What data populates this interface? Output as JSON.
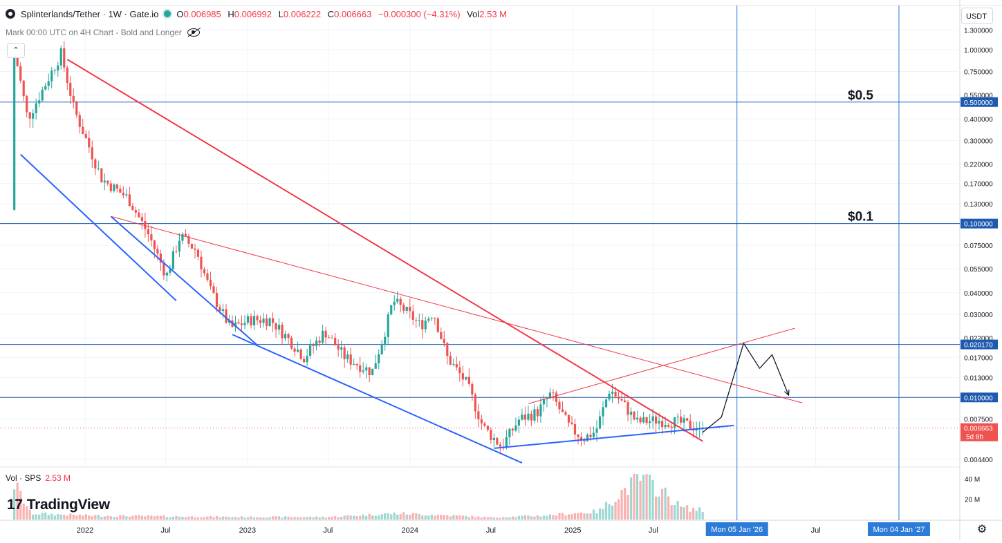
{
  "header": {
    "title": "Splinterlands/Tether · 1W · Gate.io",
    "open_label": "O",
    "open": "0.006985",
    "high_label": "H",
    "high": "0.006992",
    "low_label": "L",
    "low": "0.006222",
    "close_label": "C",
    "close": "0.006663",
    "change": "−0.000300 (−4.31%)",
    "vol_label": "Vol",
    "vol": "2.53 M",
    "subtitle": "Mark 00:00 UTC on 4H Chart - Bold and Longer",
    "collapse_glyph": "⌃"
  },
  "currency": "USDT",
  "volume_header": {
    "label": "Vol · SPS",
    "value": "2.53 M"
  },
  "logo": {
    "text": "TradingView",
    "mark": "17"
  },
  "settings_icon": "⚙",
  "colors": {
    "up": "#26a69a",
    "down": "#ef5350",
    "blue": "#2962ff",
    "red": "#f23645",
    "hline": "#1e5bb0",
    "vline": "#2d7bd8"
  },
  "chart_data": {
    "type": "candlestick",
    "scale": "log",
    "price_axis_labels": [
      "1.300000",
      "1.000000",
      "0.750000",
      "0.550000",
      "0.400000",
      "0.300000",
      "0.220000",
      "0.170000",
      "0.130000",
      "0.075000",
      "0.055000",
      "0.040000",
      "0.030000",
      "0.022000",
      "0.017000",
      "0.013000",
      "0.007500",
      "0.004400"
    ],
    "price_axis_values": [
      1.3,
      1.0,
      0.75,
      0.55,
      0.4,
      0.3,
      0.22,
      0.17,
      0.13,
      0.075,
      0.055,
      0.04,
      0.03,
      0.022,
      0.017,
      0.013,
      0.0075,
      0.0044
    ],
    "highlight_levels": [
      {
        "label": "0.500000",
        "price": 0.5,
        "annotation": "$0.5"
      },
      {
        "label": "0.100000",
        "price": 0.1,
        "annotation": "$0.1"
      },
      {
        "label": "0.020170",
        "price": 0.02017,
        "annotation": ""
      },
      {
        "label": "0.010000",
        "price": 0.01,
        "annotation": ""
      }
    ],
    "last_price": {
      "label": "0.006663",
      "countdown": "5d 8h",
      "price": 0.006663
    },
    "time_axis": [
      {
        "label": "2022",
        "date": "2022-01-01"
      },
      {
        "label": "Jul",
        "date": "2022-07-01"
      },
      {
        "label": "2023",
        "date": "2023-01-01"
      },
      {
        "label": "Jul",
        "date": "2023-07-01"
      },
      {
        "label": "2024",
        "date": "2024-01-01"
      },
      {
        "label": "Jul",
        "date": "2024-07-01"
      },
      {
        "label": "2025",
        "date": "2025-01-01"
      },
      {
        "label": "Jul",
        "date": "2025-07-01"
      },
      {
        "label": "Jul",
        "date": "2026-07-01"
      }
    ],
    "time_markers": [
      {
        "label": "Mon 05 Jan '26",
        "date": "2026-01-05"
      },
      {
        "label": "Mon 04 Jan '27",
        "date": "2027-01-04"
      }
    ],
    "volume_axis": [
      "40 M",
      "20 M"
    ],
    "volume_axis_values": [
      40,
      20
    ],
    "price_path": [
      [
        "2021-07-26",
        1.25
      ],
      [
        "2021-09-01",
        0.4
      ],
      [
        "2021-11-15",
        0.95
      ],
      [
        "2021-12-15",
        0.45
      ],
      [
        "2022-02-15",
        0.18
      ],
      [
        "2022-04-15",
        0.14
      ],
      [
        "2022-06-01",
        0.085
      ],
      [
        "2022-07-10",
        0.05
      ],
      [
        "2022-08-10",
        0.085
      ],
      [
        "2022-09-15",
        0.07
      ],
      [
        "2022-10-15",
        0.042
      ],
      [
        "2022-12-01",
        0.025
      ],
      [
        "2023-01-15",
        0.028
      ],
      [
        "2023-03-01",
        0.028
      ],
      [
        "2023-04-15",
        0.021
      ],
      [
        "2023-05-15",
        0.017
      ],
      [
        "2023-07-01",
        0.024
      ],
      [
        "2023-08-15",
        0.017
      ],
      [
        "2023-10-15",
        0.014
      ],
      [
        "2023-11-15",
        0.025
      ],
      [
        "2023-12-01",
        0.036
      ],
      [
        "2024-01-01",
        0.031
      ],
      [
        "2024-02-01",
        0.026
      ],
      [
        "2024-03-01",
        0.031
      ],
      [
        "2024-04-01",
        0.017
      ],
      [
        "2024-05-15",
        0.012
      ],
      [
        "2024-06-20",
        0.0068
      ],
      [
        "2024-08-01",
        0.0052
      ],
      [
        "2024-09-10",
        0.0075
      ],
      [
        "2024-10-20",
        0.0082
      ],
      [
        "2024-11-20",
        0.0105
      ],
      [
        "2025-01-01",
        0.0067
      ],
      [
        "2025-02-01",
        0.0058
      ],
      [
        "2025-03-01",
        0.0064
      ],
      [
        "2025-04-01",
        0.0112
      ],
      [
        "2025-05-01",
        0.0092
      ],
      [
        "2025-06-01",
        0.0072
      ],
      [
        "2025-07-15",
        0.0074
      ],
      [
        "2025-09-01",
        0.0072
      ],
      [
        "2025-10-20",
        0.006663
      ]
    ],
    "volume_path": [
      [
        "2021-07-26",
        35
      ],
      [
        "2021-09-01",
        6
      ],
      [
        "2022-01-01",
        4
      ],
      [
        "2022-07-01",
        3
      ],
      [
        "2023-01-01",
        2.5
      ],
      [
        "2023-07-01",
        2.5
      ],
      [
        "2023-12-01",
        6
      ],
      [
        "2024-04-01",
        4
      ],
      [
        "2024-07-01",
        2
      ],
      [
        "2024-11-01",
        4
      ],
      [
        "2025-03-01",
        8
      ],
      [
        "2025-04-15",
        25
      ],
      [
        "2025-06-01",
        40
      ],
      [
        "2025-07-15",
        30
      ],
      [
        "2025-09-01",
        12
      ],
      [
        "2025-10-20",
        9
      ]
    ],
    "drawings": {
      "red_thick": [
        [
          "2021-11-22",
          0.88
        ],
        [
          "2025-10-20",
          0.0056
        ]
      ],
      "red_thin_upper": [
        [
          "2022-02-28",
          0.11
        ],
        [
          "2026-06-01",
          0.0093
        ]
      ],
      "red_thin_rising": [
        [
          "2024-09-23",
          0.0092
        ],
        [
          "2026-05-15",
          0.025
        ]
      ],
      "blue_top": [
        [
          "2021-08-09",
          0.25
        ],
        [
          "2022-07-25",
          0.036
        ]
      ],
      "blue_mid": [
        [
          "2022-02-28",
          0.11
        ],
        [
          "2023-01-23",
          0.02
        ]
      ],
      "blue_bottom_long": [
        [
          "2022-11-28",
          0.023
        ],
        [
          "2024-09-09",
          0.0042
        ]
      ],
      "blue_rising": [
        [
          "2024-07-08",
          0.0051
        ],
        [
          "2025-12-29",
          0.0069
        ]
      ],
      "black_projection": [
        [
          "2025-10-20",
          0.0063
        ],
        [
          "2025-12-01",
          0.0077
        ],
        [
          "2026-01-20",
          0.0205
        ],
        [
          "2026-02-25",
          0.0147
        ],
        [
          "2026-03-25",
          0.0176
        ],
        [
          "2026-05-01",
          0.0103
        ]
      ]
    }
  }
}
